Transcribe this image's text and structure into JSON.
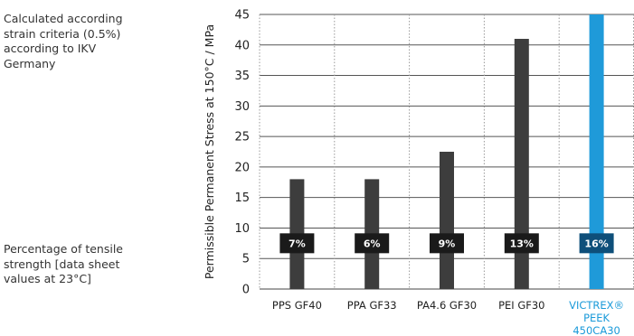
{
  "notes": {
    "top": "Calculated according strain criteria (0.5%) according to IKV Germany",
    "bottom": "Percentage of tensile strength [data sheet values at 23°C]"
  },
  "colors": {
    "bar": "#3d3d3d",
    "accent_bar": "#1f9ad9",
    "badge": "#1a1a1a",
    "accent_badge": "#0e4f7a",
    "accent_text": "#1a9ad9",
    "grid": "#999999"
  },
  "chart_data": {
    "type": "bar",
    "ylabel": "Permissible Permanent Stress at 150°C / MPa",
    "ylim": [
      0,
      45
    ],
    "yticks": [
      0,
      5,
      10,
      15,
      20,
      25,
      30,
      35,
      40,
      45
    ],
    "grid": "horizontal solid, vertical dotted",
    "categories": [
      [
        "PPS GF40"
      ],
      [
        "PPA GF33"
      ],
      [
        "PA4.6 GF30"
      ],
      [
        "PEI GF30"
      ],
      [
        "VICTREX®",
        "PEEK",
        "450CA30"
      ]
    ],
    "values": [
      18,
      18,
      22.5,
      41,
      45
    ],
    "percent_labels": [
      "7%",
      "6%",
      "9%",
      "13%",
      "16%"
    ],
    "highlight_index": 4
  }
}
